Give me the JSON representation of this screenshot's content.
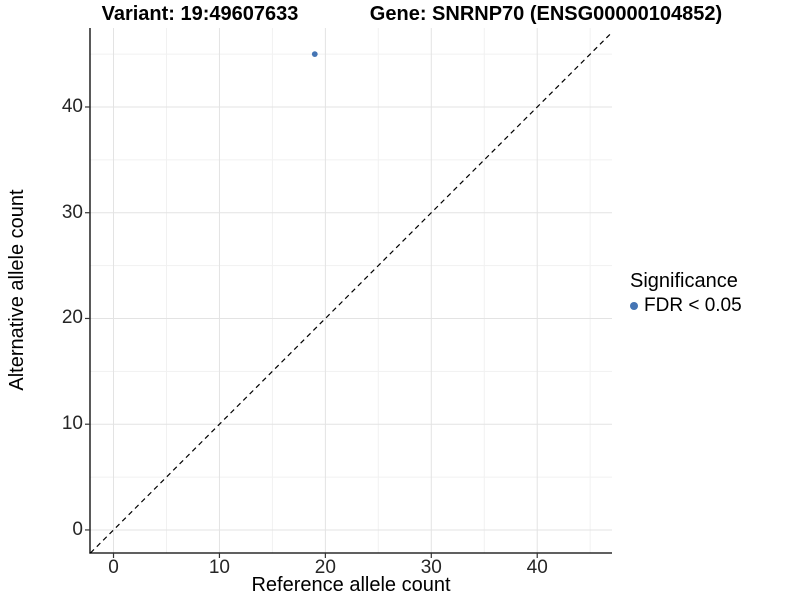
{
  "titles": {
    "variant": "Variant: 19:49607633",
    "gene": "Gene: SNRNP70 (ENSG00000104852)"
  },
  "chart_data": {
    "type": "scatter",
    "title_left": "Variant: 19:49607633",
    "title_right": "Gene: SNRNP70 (ENSG00000104852)",
    "xlabel": "Reference allele count",
    "ylabel": "Alternative allele count",
    "xlim": [
      -2.22,
      47.06
    ],
    "ylim": [
      -2.18,
      47.47
    ],
    "x_ticks": [
      0,
      10,
      20,
      30,
      40
    ],
    "y_ticks": [
      0,
      10,
      20,
      30,
      40
    ],
    "x_minor_ticks": [
      5,
      15,
      25,
      35,
      45
    ],
    "y_minor_ticks": [
      5,
      15,
      25,
      35,
      45
    ],
    "grid": true,
    "points": [
      {
        "x": 19,
        "y": 45,
        "series": "FDR < 0.05"
      }
    ],
    "reference_line": {
      "type": "identity y=x",
      "style": "dashed",
      "color": "#000000"
    },
    "legend": {
      "position": "right",
      "title": "Significance",
      "entries": [
        {
          "label": "FDR < 0.05",
          "color": "#4575b4"
        }
      ]
    },
    "colors": {
      "point": "#4575b4",
      "grid_major": "#e3e3e3",
      "grid_minor": "#f1f1f1",
      "axis_line": "#000000",
      "tick_mark": "#333333"
    }
  }
}
